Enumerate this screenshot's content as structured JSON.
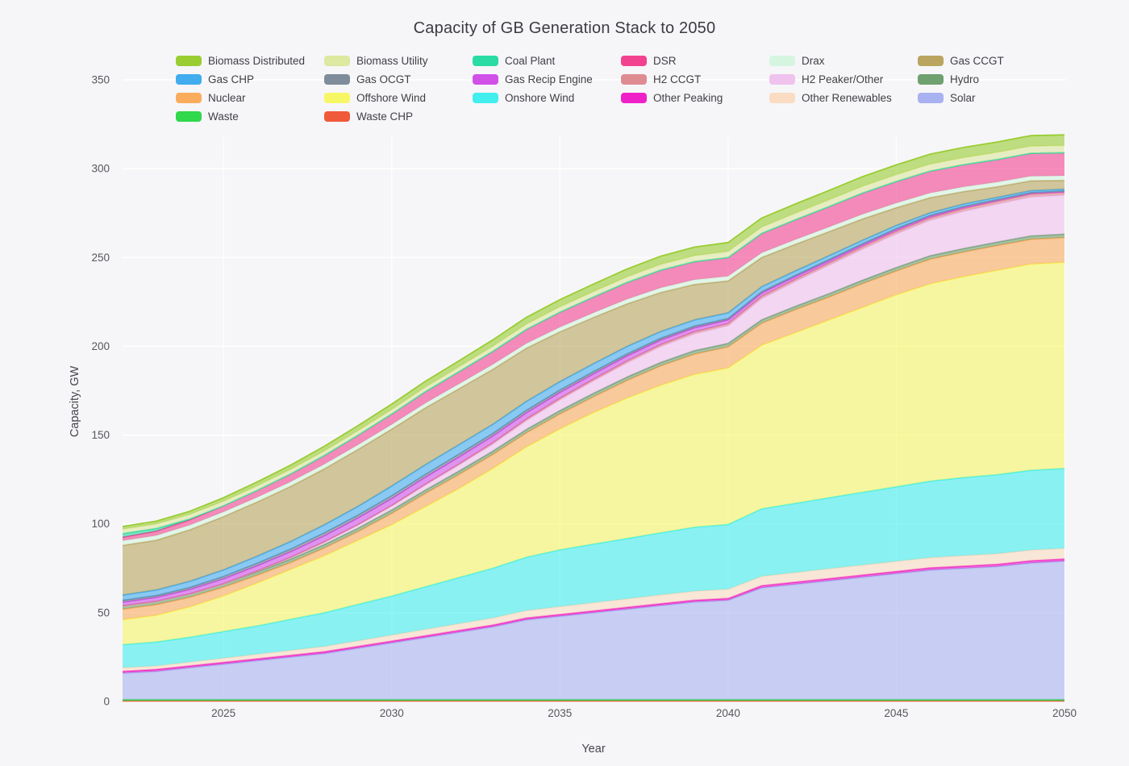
{
  "title": "Capacity of GB Generation Stack to 2050",
  "colors": {
    "background": "#f6f6f8",
    "grid": "#ffffff",
    "title_text": "#3b3b42",
    "tick_text": "#56565e",
    "axis_text": "#45454d"
  },
  "axes": {
    "x_label": "Year",
    "y_label": "Capacity, GW",
    "y_ticks": [
      0,
      50,
      100,
      150,
      200,
      250,
      300,
      350
    ],
    "x_ticks": [
      2025,
      2030,
      2035,
      2040,
      2045,
      2050
    ]
  },
  "chart_data": {
    "type": "area",
    "stacked": true,
    "title": "Capacity of GB Generation Stack to 2050",
    "xlabel": "Year",
    "ylabel": "Capacity, GW",
    "xlim": [
      2022,
      2050
    ],
    "ylim": [
      0,
      360
    ],
    "grid": true,
    "legend_position": "top",
    "x": [
      2022,
      2023,
      2024,
      2025,
      2026,
      2027,
      2028,
      2029,
      2030,
      2031,
      2032,
      2033,
      2034,
      2035,
      2036,
      2037,
      2038,
      2039,
      2040,
      2041,
      2042,
      2043,
      2044,
      2045,
      2046,
      2047,
      2048,
      2049,
      2050
    ],
    "legend_order": [
      "Biomass Distributed",
      "Biomass Utility",
      "Coal Plant",
      "DSR",
      "Drax",
      "Gas CCGT",
      "Gas CHP",
      "Gas OCGT",
      "Gas Recip Engine",
      "H2 CCGT",
      "H2 Peaker/Other",
      "Hydro",
      "Nuclear",
      "Offshore Wind",
      "Onshore Wind",
      "Other Peaking",
      "Other Renewables",
      "Solar",
      "Waste",
      "Waste CHP"
    ],
    "series": [
      {
        "name": "Waste CHP",
        "color": "#F05A3A",
        "values": [
          0.3,
          0.3,
          0.3,
          0.3,
          0.3,
          0.3,
          0.3,
          0.3,
          0.3,
          0.3,
          0.3,
          0.3,
          0.3,
          0.3,
          0.3,
          0.3,
          0.3,
          0.3,
          0.3,
          0.3,
          0.3,
          0.3,
          0.3,
          0.3,
          0.3,
          0.3,
          0.3,
          0.3,
          0.3
        ]
      },
      {
        "name": "Waste",
        "color": "#30D84B",
        "values": [
          0.7,
          0.7,
          0.7,
          0.7,
          0.7,
          0.7,
          0.7,
          0.7,
          0.7,
          0.7,
          0.7,
          0.7,
          0.7,
          0.7,
          0.7,
          0.7,
          0.7,
          0.7,
          0.7,
          0.7,
          0.7,
          0.7,
          0.7,
          0.7,
          0.7,
          0.7,
          0.7,
          0.7,
          0.7
        ]
      },
      {
        "name": "Solar",
        "color": "#A9B2F0",
        "values": [
          15,
          16,
          18,
          20,
          22,
          24,
          26,
          29,
          32,
          35,
          38,
          41,
          45,
          47,
          49,
          51,
          53,
          55,
          56,
          63,
          65,
          67,
          69,
          71,
          73,
          74,
          75,
          77,
          78
        ]
      },
      {
        "name": "Other Peaking",
        "color": "#F020C8",
        "values": [
          1,
          1,
          1,
          1,
          1,
          1,
          1,
          1,
          1,
          1,
          1,
          1,
          1,
          1,
          1,
          1,
          1,
          1,
          1,
          1.2,
          1.2,
          1.2,
          1.2,
          1.2,
          1.2,
          1.2,
          1.2,
          1.2,
          1.2
        ]
      },
      {
        "name": "Other Renewables",
        "color": "#FADCC2",
        "values": [
          2,
          2,
          2.2,
          2.4,
          2.6,
          2.8,
          3,
          3.2,
          3.4,
          3.6,
          3.8,
          4,
          4.2,
          4.4,
          4.6,
          4.8,
          5,
          5.1,
          5.2,
          5.3,
          5.4,
          5.5,
          5.6,
          5.7,
          5.8,
          5.9,
          6,
          6,
          6
        ]
      },
      {
        "name": "Onshore Wind",
        "color": "#42EEEE",
        "values": [
          13,
          13.5,
          14,
          15,
          16,
          17.5,
          19,
          20.5,
          22,
          24,
          26,
          28,
          30,
          32,
          33,
          34,
          35,
          36,
          36.5,
          38,
          39,
          40,
          41,
          42,
          43,
          44,
          44.5,
          45,
          45
        ]
      },
      {
        "name": "Offshore Wind",
        "color": "#F7F765",
        "values": [
          14,
          15,
          17,
          20,
          24,
          28,
          32,
          36,
          40,
          45,
          50,
          56,
          62,
          68,
          74,
          79,
          83,
          86,
          88,
          92,
          96,
          100,
          104,
          108,
          111,
          113,
          115,
          116,
          116
        ]
      },
      {
        "name": "Nuclear",
        "color": "#FAAC5E",
        "values": [
          6,
          6,
          5.5,
          5,
          4.5,
          4,
          4.5,
          5,
          6.5,
          7.5,
          8,
          8,
          8,
          8.5,
          9,
          10,
          11,
          11.5,
          12,
          12.5,
          13,
          13,
          13.5,
          13.5,
          14,
          14,
          14,
          14,
          14
        ]
      },
      {
        "name": "Hydro",
        "color": "#6FA06F",
        "values": [
          1.9,
          1.9,
          1.9,
          1.9,
          1.9,
          1.9,
          1.9,
          1.9,
          1.9,
          1.9,
          1.9,
          1.9,
          1.9,
          1.9,
          1.9,
          1.9,
          1.9,
          1.9,
          1.9,
          1.9,
          1.9,
          1.9,
          1.9,
          1.9,
          1.9,
          1.9,
          1.9,
          1.9,
          1.9
        ]
      },
      {
        "name": "H2 Peaker/Other",
        "color": "#F0C2EE",
        "values": [
          0,
          0,
          0,
          0,
          0.5,
          1,
          1.5,
          2,
          2.5,
          3,
          3.5,
          4,
          5,
          6,
          7,
          8,
          9,
          9.5,
          10,
          12,
          14,
          16,
          17.5,
          19,
          20,
          21,
          21.5,
          22,
          22
        ]
      },
      {
        "name": "H2 CCGT",
        "color": "#DE8C92",
        "values": [
          0,
          0,
          0,
          0,
          0,
          0,
          0,
          0,
          0,
          0.3,
          0.5,
          0.7,
          0.9,
          1,
          1,
          1.1,
          1.1,
          1.2,
          1.2,
          1.3,
          1.3,
          1.3,
          1.4,
          1.4,
          1.4,
          1.5,
          1.5,
          1.5,
          1.5
        ]
      },
      {
        "name": "Gas Recip Engine",
        "color": "#D050E8",
        "values": [
          2,
          2.2,
          2.5,
          2.8,
          3,
          3.2,
          3.5,
          3.8,
          4,
          4,
          4,
          3.8,
          3.5,
          3.2,
          3,
          2.8,
          2.5,
          2.2,
          2,
          1.8,
          1.5,
          1.3,
          1.1,
          1,
          0.9,
          0.8,
          0.7,
          0.6,
          0.5
        ]
      },
      {
        "name": "Gas OCGT",
        "color": "#7E8C9B",
        "values": [
          1,
          1,
          1.1,
          1.2,
          1.3,
          1.4,
          1.5,
          1.5,
          1.5,
          1.5,
          1.5,
          1.4,
          1.4,
          1.3,
          1.2,
          1.1,
          1,
          0.9,
          0.8,
          0.7,
          0.6,
          0.6,
          0.5,
          0.5,
          0.4,
          0.4,
          0.3,
          0.3,
          0.3
        ]
      },
      {
        "name": "Gas CHP",
        "color": "#41ACEE",
        "values": [
          3,
          3.2,
          3.5,
          3.8,
          4,
          4.3,
          4.6,
          5,
          5.5,
          5.5,
          5.4,
          5.2,
          5,
          4.8,
          4.5,
          4.2,
          3.8,
          3.5,
          3.2,
          2.8,
          2.5,
          2.2,
          2,
          1.8,
          1.5,
          1.4,
          1.2,
          1.1,
          1
        ]
      },
      {
        "name": "Gas CCGT",
        "color": "#B9A55F",
        "values": [
          28,
          28,
          29,
          30,
          30.5,
          31,
          31.5,
          32,
          32,
          32,
          31.5,
          31,
          30,
          28,
          26,
          24,
          22,
          20,
          18,
          16.5,
          15,
          13.5,
          12,
          10,
          8.5,
          7,
          6,
          5.5,
          5
        ]
      },
      {
        "name": "Drax",
        "color": "#D6F5E0",
        "values": [
          2.6,
          2.6,
          2.6,
          2.6,
          2.6,
          2.6,
          2.6,
          2.6,
          2.6,
          2.6,
          2.6,
          2.6,
          2.6,
          2.6,
          2.6,
          2.6,
          2.6,
          2.6,
          2.6,
          2.6,
          2.6,
          2.6,
          2.6,
          2.6,
          2.6,
          2.6,
          2.6,
          2.6,
          2.6
        ]
      },
      {
        "name": "DSR",
        "color": "#F2428F",
        "values": [
          2,
          2.5,
          3,
          3.5,
          4,
          4.5,
          5,
          5.5,
          6,
          6.5,
          7,
          7.5,
          8,
          8.5,
          9,
          9.5,
          10,
          10.3,
          10.6,
          11,
          11.3,
          11.6,
          12,
          12.2,
          12.4,
          12.6,
          12.8,
          13,
          13
        ]
      },
      {
        "name": "Coal Plant",
        "color": "#2BDBA4",
        "values": [
          2,
          1.5,
          0.5,
          0,
          0,
          0,
          0,
          0,
          0,
          0,
          0,
          0,
          0,
          0,
          0,
          0,
          0,
          0,
          0,
          0,
          0,
          0,
          0,
          0,
          0,
          0,
          0,
          0,
          0
        ]
      },
      {
        "name": "Biomass Utility",
        "color": "#DDE8A0",
        "values": [
          2.5,
          2.5,
          2.5,
          2.5,
          2.5,
          2.5,
          2.5,
          2.5,
          2.5,
          2.6,
          2.7,
          2.8,
          2.9,
          3,
          3,
          3.1,
          3.2,
          3.3,
          3.4,
          3.5,
          3.6,
          3.7,
          3.8,
          3.8,
          3.9,
          3.9,
          4,
          4,
          4
        ]
      },
      {
        "name": "Biomass Distributed",
        "color": "#9ACD32",
        "values": [
          1.5,
          1.6,
          1.8,
          2,
          2.2,
          2.4,
          2.6,
          2.8,
          3,
          3.2,
          3.4,
          3.6,
          3.8,
          4,
          4.2,
          4.4,
          4.6,
          4.8,
          5,
          5.1,
          5.2,
          5.3,
          5.4,
          5.5,
          5.6,
          5.7,
          5.8,
          5.9,
          6
        ]
      }
    ]
  }
}
